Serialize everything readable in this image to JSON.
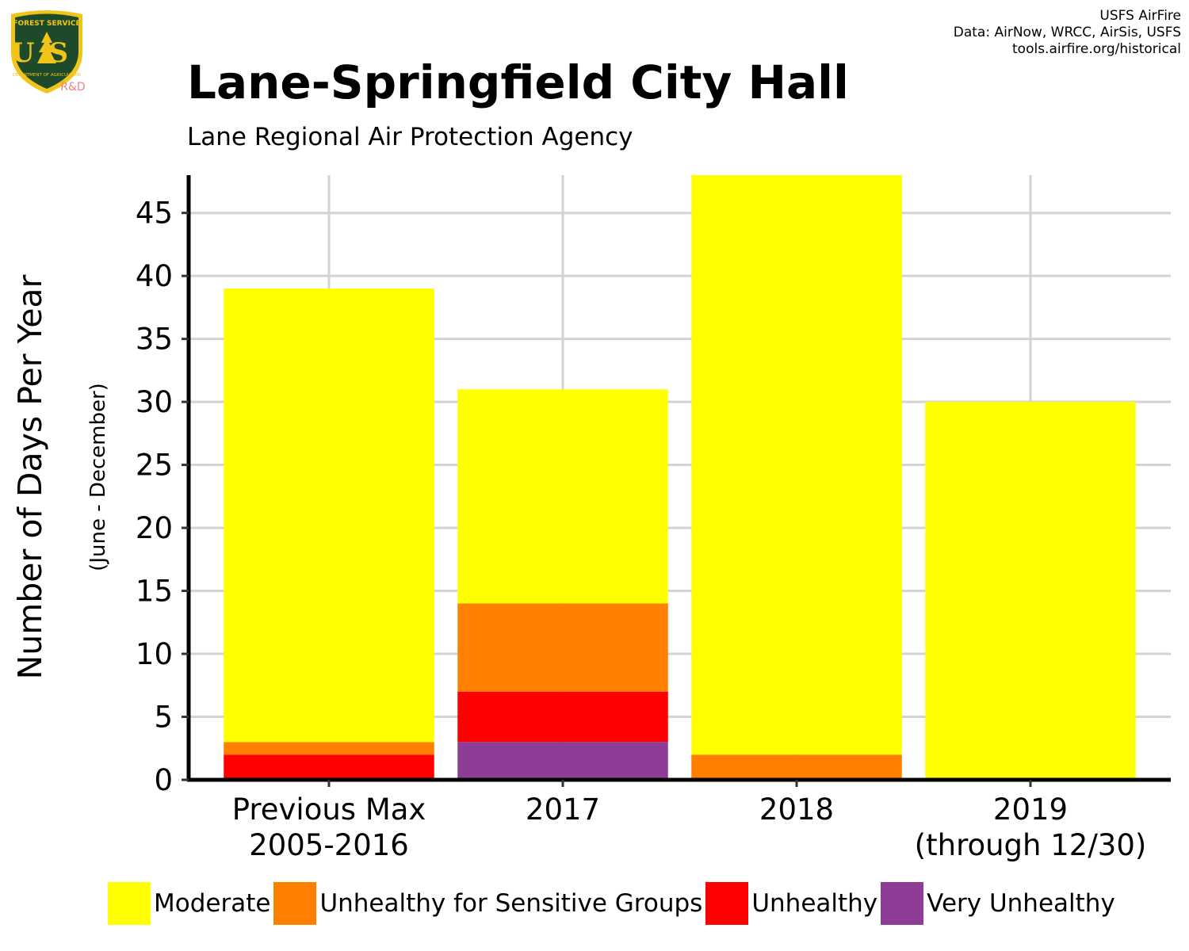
{
  "header": {
    "title": "Lane-Springfield City Hall",
    "subtitle": "Lane Regional Air Protection Agency",
    "credits": [
      "USFS AirFire",
      "Data: AirNow, WRCC, AirSis, USFS",
      "tools.airfire.org/historical"
    ],
    "logo": {
      "top_text": "FOREST SERVICE",
      "letters": "US",
      "bottom_text": "DEPARTMENT OF AGRICULTURE",
      "tag": "R&D",
      "icon": "forest-service-shield-icon"
    }
  },
  "chart_data": {
    "type": "bar",
    "stacked": true,
    "ylabel": "Number of Days Per Year",
    "ysublabel": "(June - December)",
    "ylim": [
      0,
      48
    ],
    "yticks": [
      0,
      5,
      10,
      15,
      20,
      25,
      30,
      35,
      40,
      45
    ],
    "grid": true,
    "legend_position": "bottom",
    "categories": [
      [
        "Previous Max",
        "2005-2016"
      ],
      [
        "2017"
      ],
      [
        "2018"
      ],
      [
        "2019",
        "(through 12/30)"
      ]
    ],
    "series": [
      {
        "name": "Very Unhealthy",
        "color": "#8e3d97",
        "values": [
          0,
          3,
          0,
          0
        ]
      },
      {
        "name": "Unhealthy",
        "color": "#ff0000",
        "values": [
          2,
          4,
          0,
          0
        ]
      },
      {
        "name": "Unhealthy for Sensitive Groups",
        "color": "#ff7f00",
        "values": [
          1,
          7,
          2,
          0
        ]
      },
      {
        "name": "Moderate",
        "color": "#ffff00",
        "values": [
          36,
          17,
          46,
          30
        ]
      }
    ],
    "legend_order": [
      "Moderate",
      "Unhealthy for Sensitive Groups",
      "Unhealthy",
      "Very Unhealthy"
    ]
  },
  "colors": {
    "grid": "#d3d3d3",
    "axis": "#000000",
    "logo_shield": "#1d4a2a",
    "logo_gold": "#f0c419",
    "logo_tag": "#f08080"
  }
}
